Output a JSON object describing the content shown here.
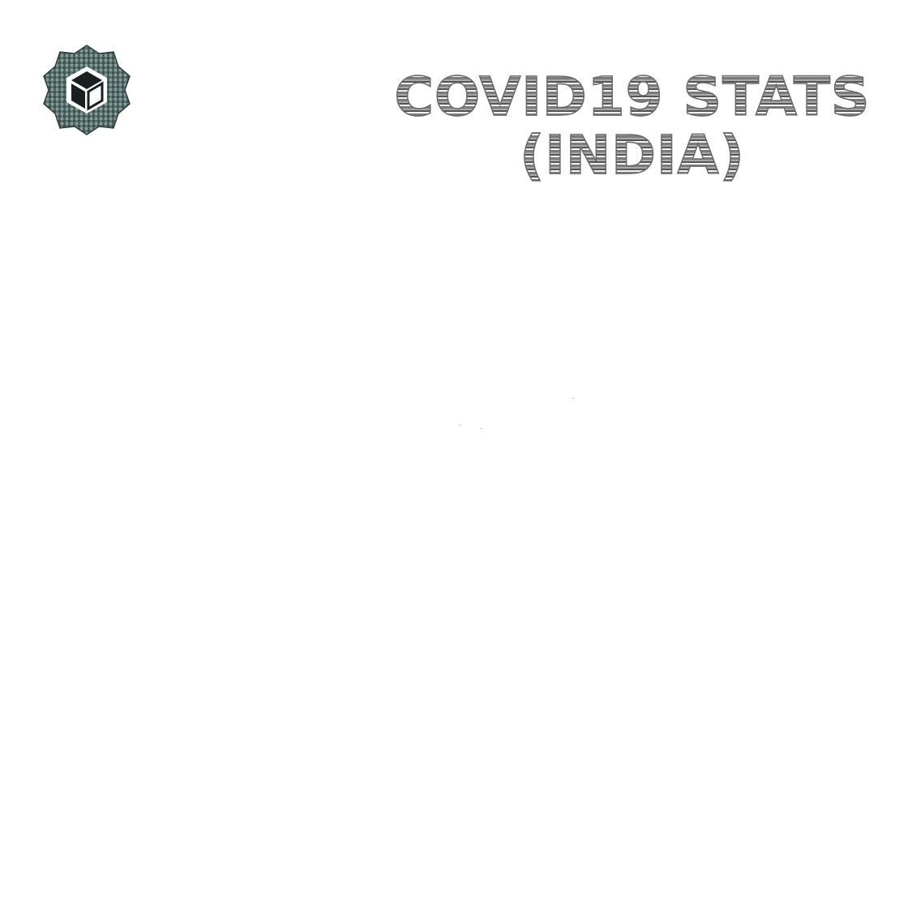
{
  "header": {
    "title_line1": "COVID19 STATS",
    "title_line2": "(INDIA)"
  },
  "logo": {
    "icon": "hexagon-cube-icon"
  },
  "colors": {
    "logo_teal": "#4a6a68",
    "title_gray": "#8a8a8a",
    "background": "#ffffff"
  }
}
